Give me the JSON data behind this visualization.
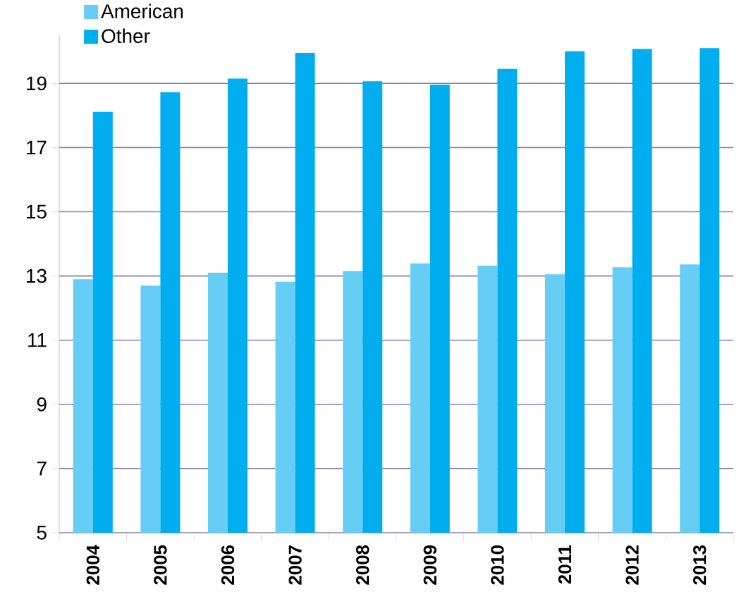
{
  "chart_data": {
    "type": "bar",
    "categories": [
      "2004",
      "2005",
      "2006",
      "2007",
      "2008",
      "2009",
      "2010",
      "2011",
      "2012",
      "2013"
    ],
    "series": [
      {
        "name": "American",
        "color": "#66cdf5",
        "values": [
          12.9,
          12.7,
          13.1,
          12.82,
          13.15,
          13.39,
          13.32,
          13.05,
          13.27,
          13.36
        ]
      },
      {
        "name": "Other",
        "color": "#00aeef",
        "values": [
          18.11,
          18.72,
          19.15,
          19.95,
          19.07,
          18.96,
          19.45,
          20.0,
          20.07,
          20.1
        ]
      }
    ],
    "ylim": [
      5,
      20.5
    ],
    "yticks": [
      5,
      7,
      9,
      11,
      13,
      15,
      17,
      19
    ],
    "grid": "y",
    "legend": "top left"
  }
}
